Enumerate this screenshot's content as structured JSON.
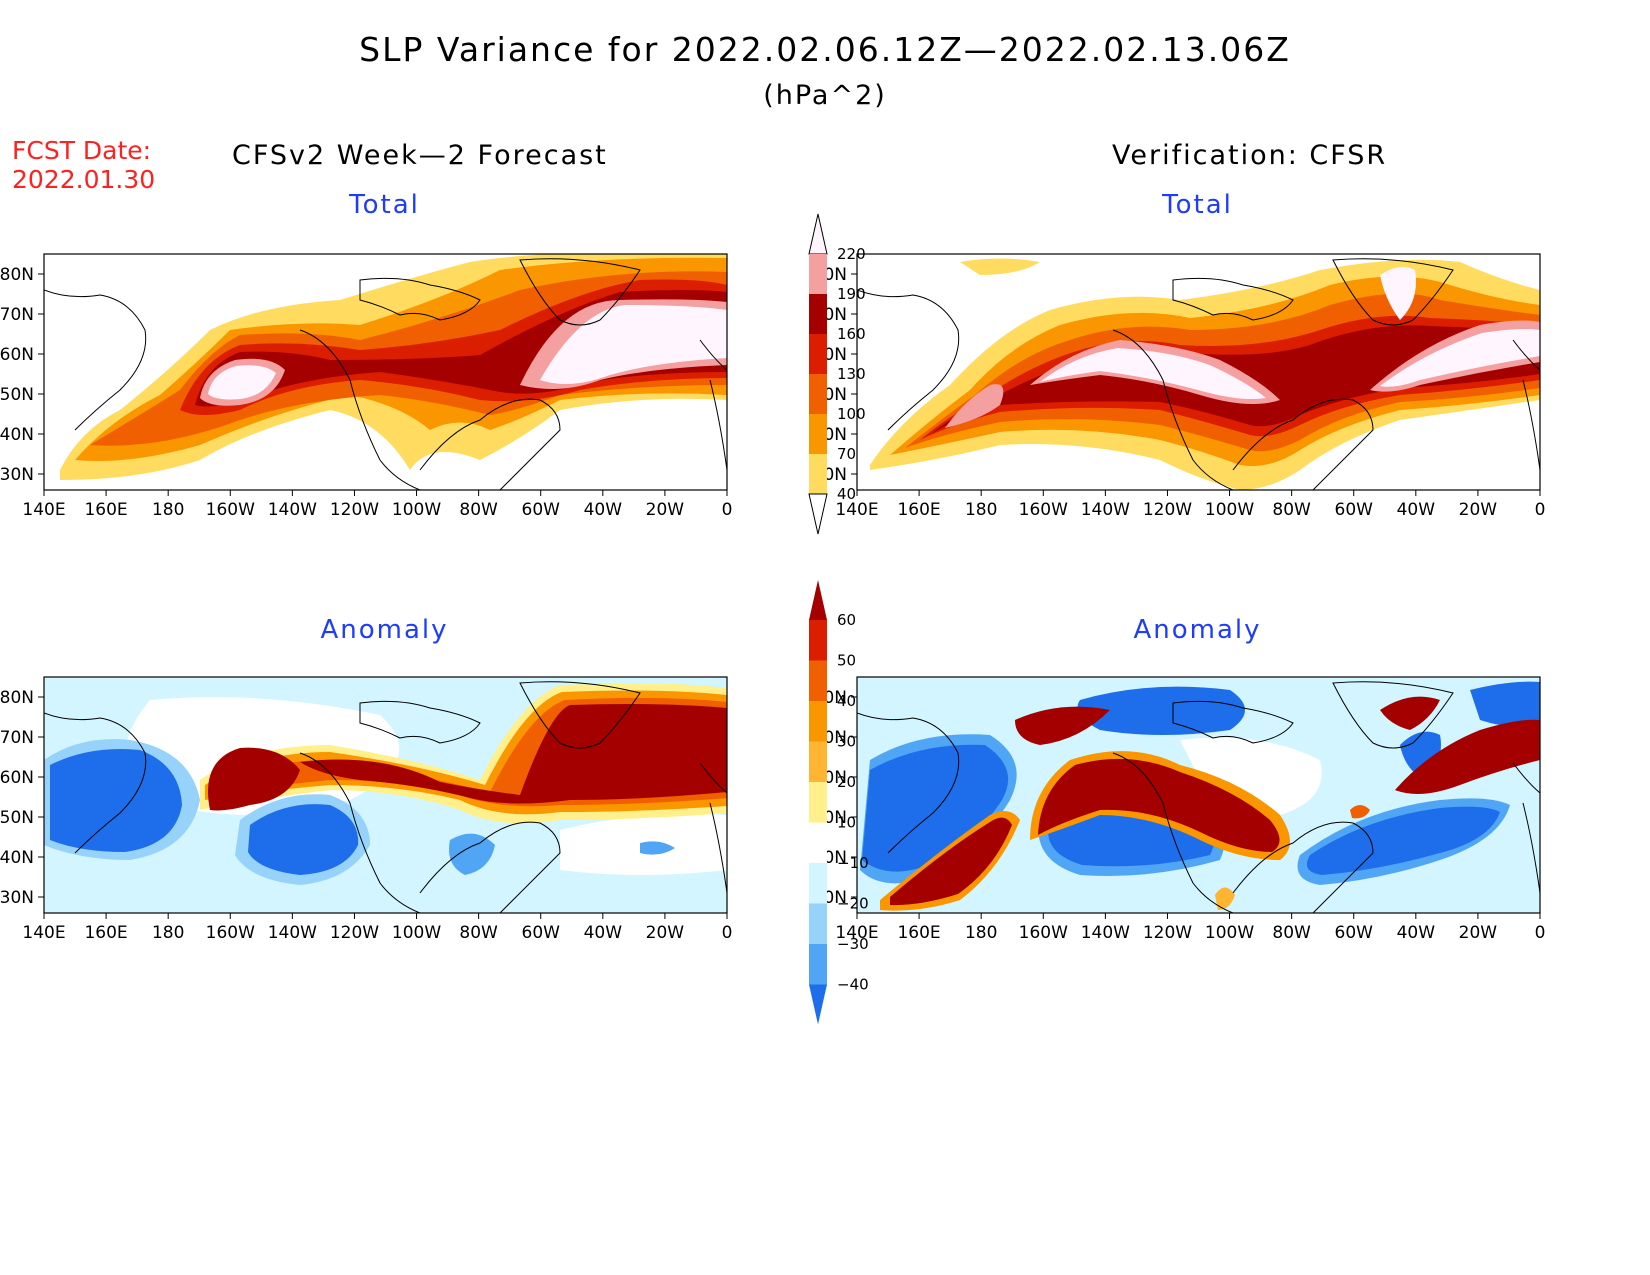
{
  "title": "SLP Variance for 2022.02.06.12Z—2022.02.13.06Z",
  "units": "(hPa^2)",
  "fcst_label": "FCST Date:",
  "fcst_date": "2022.01.30",
  "left_column_title": "CFSv2 Week—2 Forecast",
  "right_column_title": "Verification: CFSR",
  "panels": [
    {
      "title": "Total"
    },
    {
      "title": "Total"
    },
    {
      "title": "Anomaly"
    },
    {
      "title": "Anomaly"
    }
  ],
  "lon_ticks": [
    "140E",
    "160E",
    "180",
    "160W",
    "140W",
    "120W",
    "100W",
    "80W",
    "60W",
    "40W",
    "20W",
    "0"
  ],
  "lat_ticks": [
    "80N",
    "70N",
    "60N",
    "50N",
    "40N",
    "30N"
  ],
  "total_colorbar": {
    "levels": [
      "40",
      "70",
      "100",
      "130",
      "160",
      "190",
      "220"
    ],
    "colors": [
      "#fff5ff",
      "#f5a0a0",
      "#a50000",
      "#dc1e00",
      "#f06000",
      "#fa9600",
      "#ffdc60"
    ]
  },
  "anomaly_colorbar": {
    "levels": [
      "60",
      "50",
      "40",
      "30",
      "20",
      "10",
      "−10",
      "−20",
      "−30",
      "−40"
    ],
    "colors": [
      "#a50000",
      "#dc1e00",
      "#f06000",
      "#fa9600",
      "#ffb432",
      "#fff08c",
      "#ffffff",
      "#d2f5ff",
      "#96d2fa",
      "#50a5f5",
      "#1e6eeb"
    ]
  },
  "colors": {
    "title_text": "#000000",
    "panel_title_text": "#1e3cff",
    "fcst_text": "#ff2020"
  }
}
